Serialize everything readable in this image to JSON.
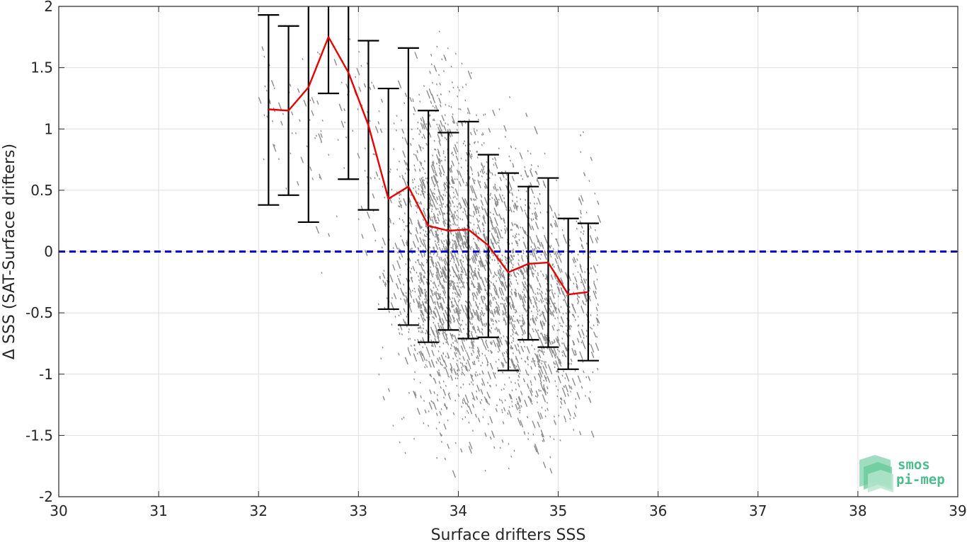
{
  "chart_data": {
    "type": "scatter",
    "title": "",
    "xlabel": "Surface drifters SSS",
    "ylabel": "Δ SSS (SAT-Surface drifters)",
    "xlim": [
      30,
      39
    ],
    "ylim": [
      -2,
      2
    ],
    "xticks": [
      30,
      31,
      32,
      33,
      34,
      35,
      36,
      37,
      38,
      39
    ],
    "yticks": [
      -2,
      -1.5,
      -1,
      -0.5,
      0,
      0.5,
      1,
      1.5,
      2
    ],
    "xtick_labels": [
      "30",
      "31",
      "32",
      "33",
      "34",
      "35",
      "36",
      "37",
      "38",
      "39"
    ],
    "ytick_labels": [
      "-2",
      "-1.5",
      "-1",
      "-0.5",
      "0",
      "0.5",
      "1",
      "1.5",
      "2"
    ],
    "grid": true,
    "zero_line": {
      "y": 0,
      "style": "dashed",
      "color": "#0000e6"
    },
    "series": [
      {
        "kind": "mean-line-with-errorbars",
        "color": "#e60000",
        "errorbar_color": "#000000",
        "x": [
          32.1,
          32.3,
          32.5,
          32.7,
          32.9,
          33.1,
          33.3,
          33.5,
          33.7,
          33.9,
          34.1,
          34.3,
          34.5,
          34.7,
          34.9,
          35.1,
          35.3
        ],
        "y": [
          1.16,
          1.15,
          1.34,
          1.75,
          1.46,
          1.03,
          0.43,
          0.53,
          0.21,
          0.17,
          0.18,
          0.05,
          -0.17,
          -0.1,
          -0.09,
          -0.35,
          -0.33
        ],
        "lower": [
          0.38,
          0.46,
          0.24,
          1.29,
          0.59,
          0.34,
          -0.47,
          -0.6,
          -0.74,
          -0.64,
          -0.71,
          -0.7,
          -0.97,
          -0.72,
          -0.78,
          -0.96,
          -0.89
        ],
        "upper": [
          1.93,
          1.84,
          2.1,
          2.1,
          2.1,
          1.72,
          1.33,
          1.66,
          1.15,
          0.97,
          1.06,
          0.79,
          0.64,
          0.53,
          0.6,
          0.27,
          0.23
        ]
      }
    ],
    "scatter_cloud": {
      "color": "#8c8c8c",
      "bins": [
        {
          "x0": 32.0,
          "x1": 32.2,
          "y0": 0.3,
          "y1": 2.0,
          "n": 18
        },
        {
          "x0": 32.2,
          "x1": 32.4,
          "y0": 0.1,
          "y1": 1.9,
          "n": 14
        },
        {
          "x0": 32.4,
          "x1": 32.6,
          "y0": -0.2,
          "y1": 2.0,
          "n": 16
        },
        {
          "x0": 32.6,
          "x1": 32.8,
          "y0": -0.8,
          "y1": 2.0,
          "n": 14
        },
        {
          "x0": 32.8,
          "x1": 33.0,
          "y0": 0.4,
          "y1": 2.0,
          "n": 20
        },
        {
          "x0": 33.0,
          "x1": 33.2,
          "y0": -0.4,
          "y1": 1.9,
          "n": 34
        },
        {
          "x0": 33.2,
          "x1": 33.4,
          "y0": -1.5,
          "y1": 1.7,
          "n": 60
        },
        {
          "x0": 33.4,
          "x1": 33.6,
          "y0": -1.9,
          "y1": 2.0,
          "n": 180
        },
        {
          "x0": 33.6,
          "x1": 33.8,
          "y0": -2.0,
          "y1": 2.0,
          "n": 420
        },
        {
          "x0": 33.8,
          "x1": 34.0,
          "y0": -2.0,
          "y1": 2.0,
          "n": 460
        },
        {
          "x0": 34.0,
          "x1": 34.2,
          "y0": -2.0,
          "y1": 1.8,
          "n": 380
        },
        {
          "x0": 34.2,
          "x1": 34.4,
          "y0": -1.9,
          "y1": 1.5,
          "n": 320
        },
        {
          "x0": 34.4,
          "x1": 34.6,
          "y0": -2.0,
          "y1": 1.4,
          "n": 300
        },
        {
          "x0": 34.6,
          "x1": 34.8,
          "y0": -2.0,
          "y1": 1.3,
          "n": 280
        },
        {
          "x0": 34.8,
          "x1": 35.0,
          "y0": -2.0,
          "y1": 1.0,
          "n": 240
        },
        {
          "x0": 35.0,
          "x1": 35.2,
          "y0": -1.9,
          "y1": 0.7,
          "n": 140
        },
        {
          "x0": 35.2,
          "x1": 35.4,
          "y0": -1.8,
          "y1": 1.3,
          "n": 120
        }
      ]
    }
  },
  "logo": {
    "line1": "smos",
    "line2": "pi-mep",
    "color": "#4dbb8c"
  }
}
